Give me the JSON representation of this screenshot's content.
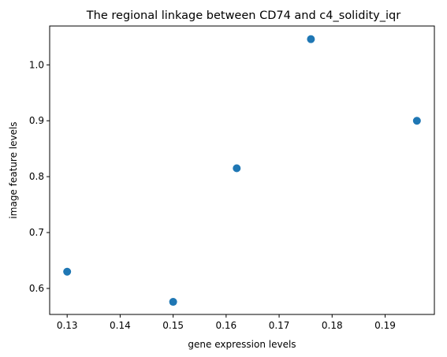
{
  "chart_data": {
    "type": "scatter",
    "title": "The regional linkage between CD74 and c4_solidity_iqr",
    "xlabel": "gene expression levels",
    "ylabel": "image feature levels",
    "xlim": [
      0.1267,
      0.1993
    ],
    "ylim": [
      0.5535,
      1.0695
    ],
    "xticks": [
      0.13,
      0.14,
      0.15,
      0.16,
      0.17,
      0.18,
      0.19
    ],
    "yticks": [
      0.6,
      0.7,
      0.8,
      0.9,
      1.0
    ],
    "grid": false,
    "marker_color": "#1f77b4",
    "points": [
      {
        "x": 0.13,
        "y": 0.63
      },
      {
        "x": 0.15,
        "y": 0.576
      },
      {
        "x": 0.162,
        "y": 0.815
      },
      {
        "x": 0.176,
        "y": 1.046
      },
      {
        "x": 0.196,
        "y": 0.9
      }
    ]
  }
}
